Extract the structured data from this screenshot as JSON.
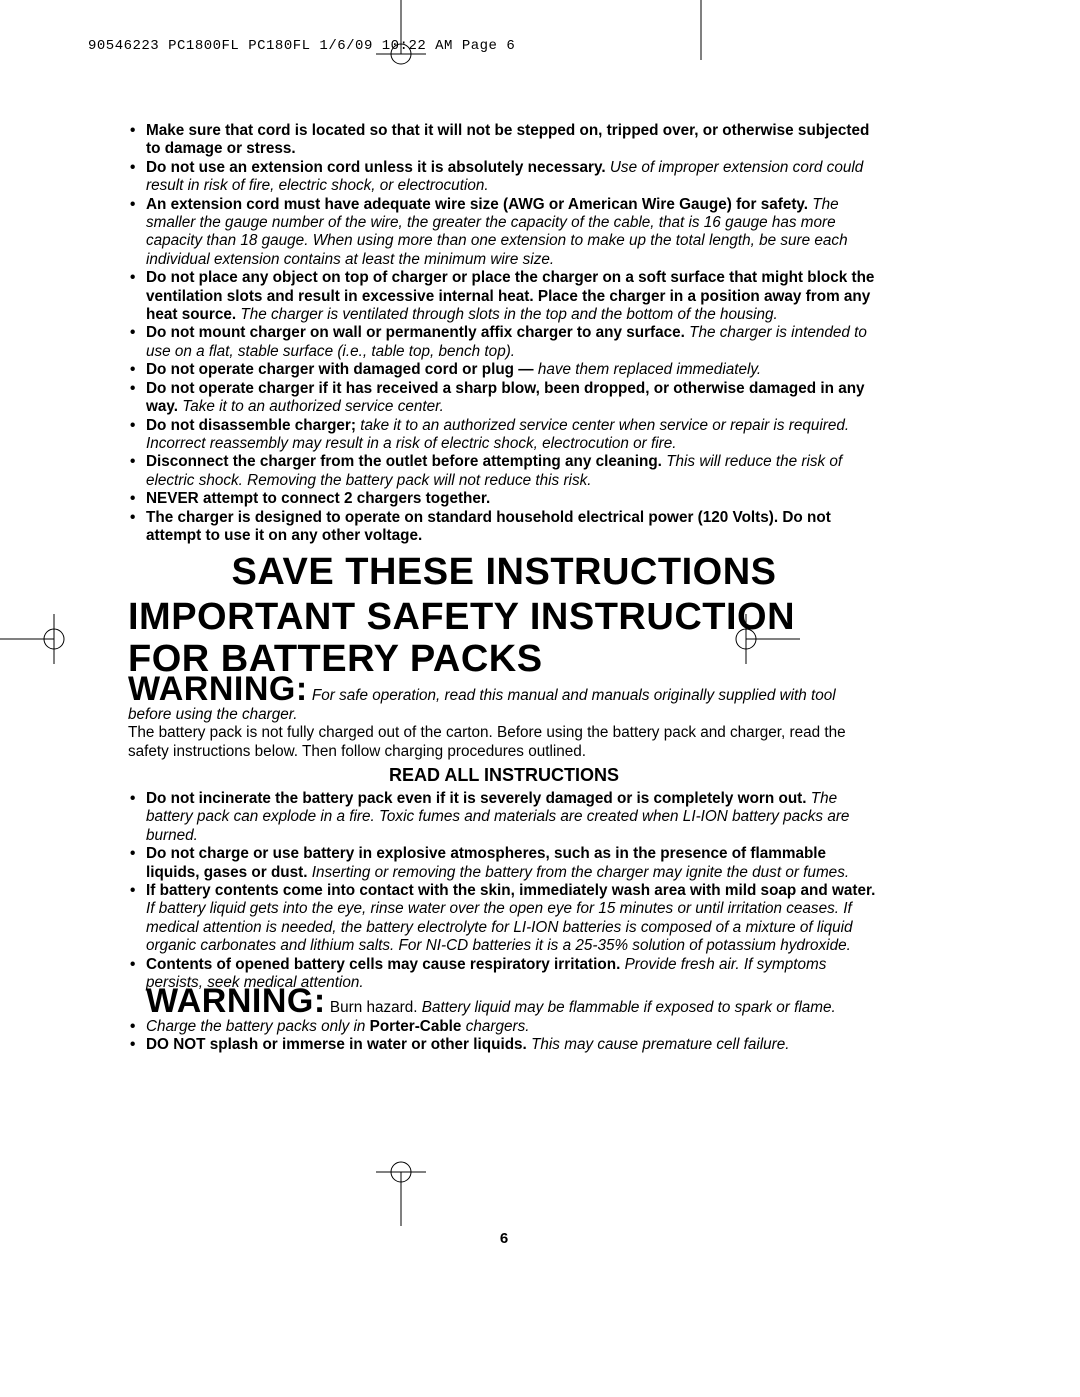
{
  "header": "90546223 PC1800FL PC180FL  1/6/09  10:22 AM  Page 6",
  "page_number": "6",
  "section1_bullets": [
    {
      "bold": "Make sure that cord is located so that it will not be stepped on, tripped over, or otherwise subjected to damage or stress.",
      "rest": "",
      "italic": ""
    },
    {
      "bold": "Do not use an extension cord unless it is absolutely necessary.",
      "rest": " ",
      "italic": "Use of improper extension cord could result in risk of fire, electric shock, or electrocution."
    },
    {
      "bold": "An extension cord must have adequate wire size (AWG or American Wire Gauge) for safety.",
      "rest": " ",
      "italic": "The smaller the gauge number of the wire, the greater the capacity of the cable, that is 16 gauge has more capacity than 18 gauge. When using more than one extension to make up the total length, be sure each individual extension contains at least the minimum wire size."
    },
    {
      "bold": "Do not place any object on top of charger or place the charger on a soft surface that might block the ventilation slots and result in excessive internal heat. Place the charger in a position away from any heat source.",
      "rest": " ",
      "italic": "The charger is ventilated through slots in the top and the bottom of the housing."
    },
    {
      "bold": "Do not mount charger on wall or permanently affix charger to any surface.",
      "rest": " ",
      "italic": "The charger is intended to use on a flat, stable surface (i.e., table top, bench top)."
    },
    {
      "bold": "Do not operate charger with damaged cord or plug —",
      "rest": " ",
      "italic": "have them replaced immediately."
    },
    {
      "bold": "Do not operate charger if it has received a sharp blow, been dropped, or otherwise damaged in any way.",
      "rest": " ",
      "italic": "Take it to an authorized service center."
    },
    {
      "bold": "Do not disassemble charger;",
      "rest": " ",
      "italic": "take it to an authorized service center when service or repair is required. Incorrect reassembly may result in a risk of electric shock, electrocution or fire."
    },
    {
      "bold": "Disconnect the charger from the outlet before attempting any cleaning.",
      "rest": " ",
      "italic": "This will reduce the risk of electric shock. Removing the battery pack will not reduce this risk."
    },
    {
      "bold": "NEVER attempt to connect 2 chargers together.",
      "rest": "",
      "italic": ""
    },
    {
      "bold": "The charger is designed to operate on standard household electrical power (120 Volts). Do not attempt to use it on any other voltage.",
      "rest": "",
      "italic": ""
    }
  ],
  "h_save": "SAVE THESE INSTRUCTIONS",
  "h_important": "IMPORTANT SAFETY INSTRUCTION FOR BATTERY PACKS",
  "warning_label": "WARNING:",
  "warning_text_italic": "For safe operation, read this manual and manuals originally supplied with tool before using the charger.",
  "intro_plain": "The battery pack is not fully charged out of the carton. Before using the battery pack and charger, read the safety instructions below. Then follow charging procedures outlined.",
  "read_all": "READ ALL INSTRUCTIONS",
  "section2_bullets": [
    {
      "bold": "Do not incinerate the battery pack even if it is severely damaged or is completely worn out.",
      "rest": " ",
      "italic": "The battery pack can explode in a fire. Toxic fumes and materials are created when LI-ION battery packs are burned."
    },
    {
      "bold": "Do not charge or use battery in explosive atmospheres, such as in the presence of flammable liquids, gases or dust.",
      "rest": " ",
      "italic": "Inserting or removing the battery from the charger may ignite the dust or fumes."
    },
    {
      "bold": "If battery contents come into contact with the skin, immediately wash area with mild soap and water.",
      "rest": " ",
      "italic": "If battery liquid gets into the eye, rinse water over the open eye for 15 minutes or until irritation ceases. If medical attention is needed, the battery electrolyte for LI-ION batteries is composed of a mixture of liquid organic carbonates and lithium salts. For NI-CD batteries it is a 25-35% solution of potassium hydroxide."
    },
    {
      "bold": "Contents of opened battery cells may cause respiratory irritation.",
      "rest": " ",
      "italic": "Provide fresh air. If symptoms persists, seek medical attention."
    }
  ],
  "warning2_plain": "Burn hazard. ",
  "warning2_italic": "Battery liquid may be flammable if exposed to spark or flame.",
  "section3_bullets": [
    {
      "pre_italic": "Charge the battery packs only in ",
      "bold": "Porter-Cable",
      "post_italic": " chargers."
    },
    {
      "bold": "DO NOT splash or immerse in water or other liquids.",
      "rest": " ",
      "italic": "This may cause premature cell failure."
    }
  ]
}
